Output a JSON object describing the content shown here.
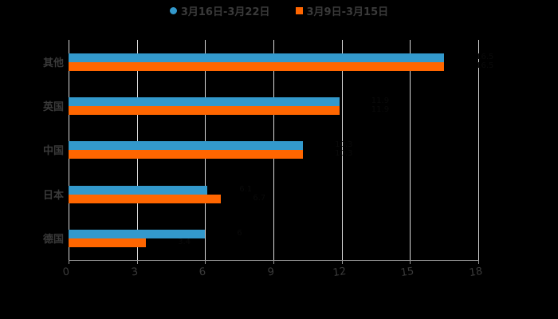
{
  "chart_data": {
    "type": "bar",
    "orientation": "horizontal",
    "title": "",
    "xlabel": "",
    "ylabel": "",
    "categories": [
      "其他",
      "英国",
      "中国",
      "日本",
      "德国"
    ],
    "series": [
      {
        "name": "3月16日-3月22日",
        "color": "#3399cc",
        "values": [
          16.5,
          11.9,
          10.3,
          6.1,
          6.0
        ]
      },
      {
        "name": "3月9日-3月15日",
        "color": "#ff6600",
        "values": [
          16.5,
          11.9,
          10.3,
          6.7,
          3.4
        ]
      }
    ],
    "xlim": [
      0,
      18
    ],
    "x_ticks": [
      "0",
      "3",
      "6",
      "9",
      "12",
      "15",
      "18"
    ],
    "grid": true,
    "legend_position": "top"
  },
  "legend": [
    {
      "label": "3月16日-3月22日",
      "color": "#3399cc",
      "shape": "circle"
    },
    {
      "label": "3月9日-3月15日",
      "color": "#ff6600",
      "shape": "square"
    }
  ],
  "axis": {
    "x_ticks": [
      "0",
      "3",
      "6",
      "9",
      "12",
      "15",
      "18"
    ],
    "y_categories": [
      "其他",
      "英国",
      "中国",
      "日本",
      "德国"
    ]
  }
}
